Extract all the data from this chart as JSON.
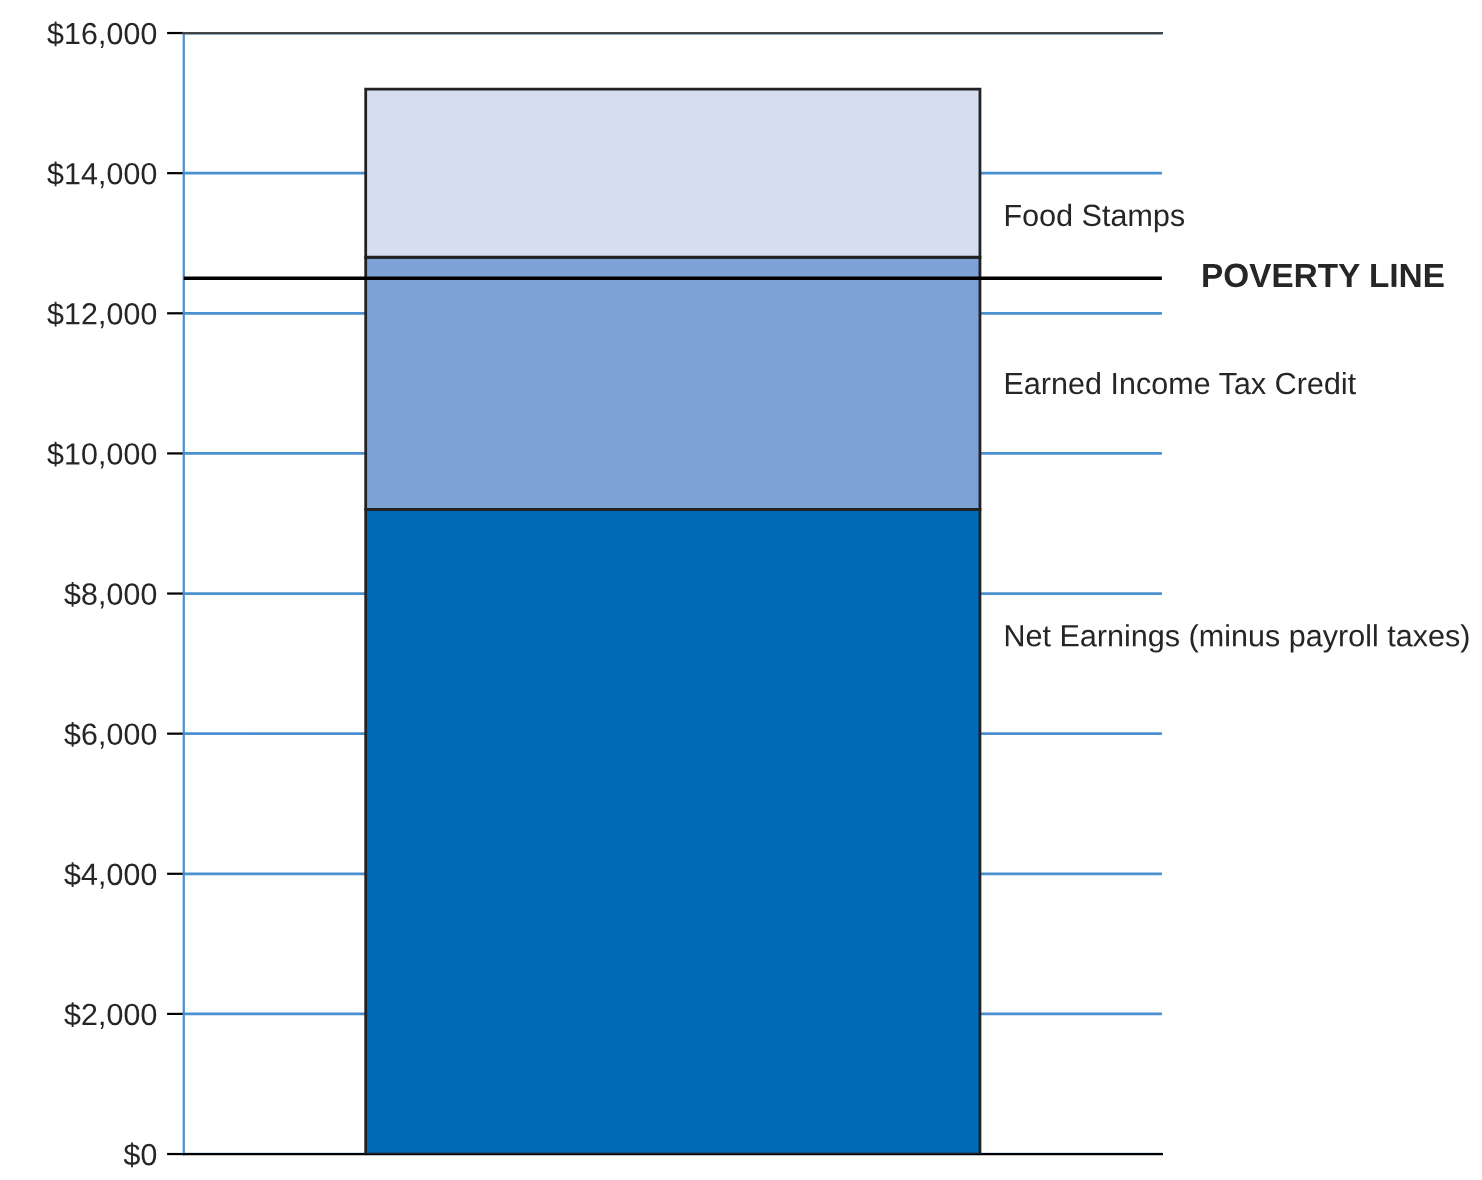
{
  "chart_data": {
    "type": "bar",
    "stacked": true,
    "categories": [
      null
    ],
    "series": [
      {
        "name": "Net Earnings (minus payroll taxes)",
        "color": "#006ab6",
        "values": [
          9200
        ]
      },
      {
        "name": "Earned Income Tax Credit",
        "color": "#7da2d6",
        "values": [
          3600
        ]
      },
      {
        "name": "Food Stamps",
        "color": "#d5ddf0",
        "values": [
          2400
        ]
      }
    ],
    "ylim": [
      0,
      16000
    ],
    "yticks": [
      {
        "value": 0,
        "label": "$0"
      },
      {
        "value": 2000,
        "label": "$2,000"
      },
      {
        "value": 4000,
        "label": "$4,000"
      },
      {
        "value": 6000,
        "label": "$6,000"
      },
      {
        "value": 8000,
        "label": "$8,000"
      },
      {
        "value": 10000,
        "label": "$10,000"
      },
      {
        "value": 12000,
        "label": "$12,000"
      },
      {
        "value": 14000,
        "label": "$14,000"
      },
      {
        "value": 16000,
        "label": "$16,000"
      }
    ],
    "grid": "y",
    "ref_lines": [
      {
        "axis": "y",
        "value": 12500,
        "label": "POVERTY LINE",
        "color": "#000000"
      }
    ],
    "legend": false
  }
}
